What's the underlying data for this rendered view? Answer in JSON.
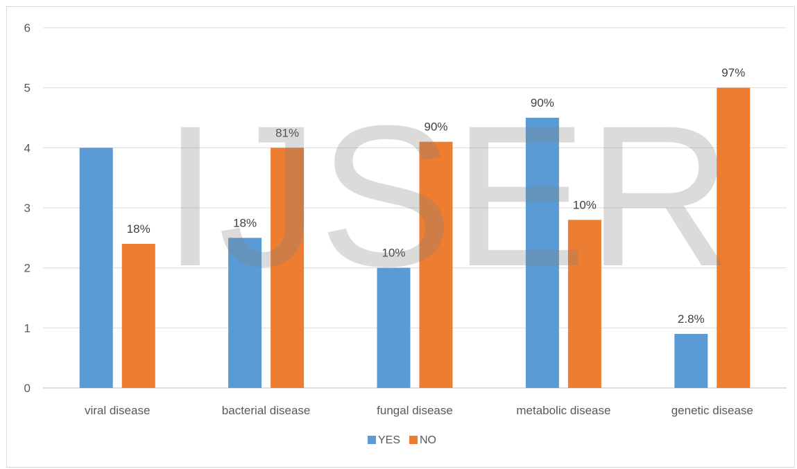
{
  "chart_data": {
    "type": "bar",
    "categories": [
      "viral disease",
      "bacterial disease",
      "fungal disease",
      "metabolic disease",
      "genetic disease"
    ],
    "series": [
      {
        "name": "YES",
        "color": "#5b9bd5",
        "values": [
          4,
          2.5,
          2,
          4.5,
          0.9
        ],
        "labels": [
          "",
          "18%",
          "10%",
          "90%",
          "2.8%"
        ]
      },
      {
        "name": "NO",
        "color": "#ed7d31",
        "values": [
          2.4,
          4,
          4.1,
          2.8,
          5
        ],
        "labels": [
          "18%",
          "81%",
          "90%",
          "10%",
          "97%"
        ]
      }
    ],
    "ylim": [
      0,
      6
    ],
    "yticks": [
      "0",
      "1",
      "2",
      "3",
      "4",
      "5",
      "6"
    ],
    "grid": true,
    "legend_position": "bottom",
    "watermark": "IJSER"
  }
}
